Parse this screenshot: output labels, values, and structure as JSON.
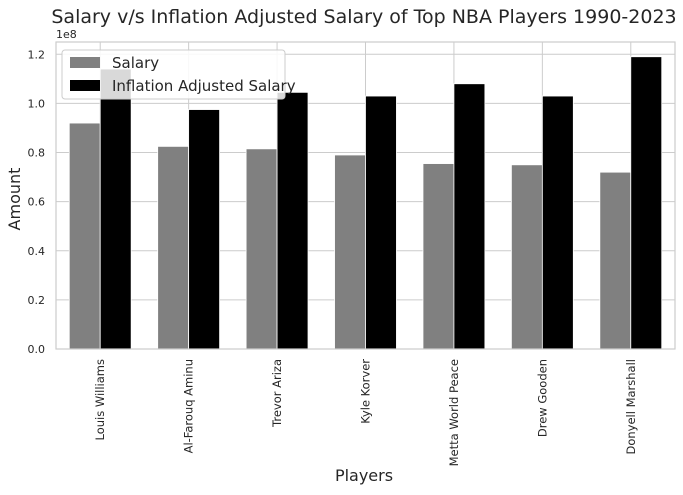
{
  "chart_data": {
    "type": "bar",
    "title": "Salary v/s Inflation Adjusted Salary of Top NBA Players 1990-2023",
    "xlabel": "Players",
    "ylabel": "Amount",
    "y_scale_multiplier": "1e8",
    "ylim": [
      0,
      125000000
    ],
    "yticks": [
      0,
      20000000,
      40000000,
      60000000,
      80000000,
      100000000,
      120000000
    ],
    "ytick_labels": [
      "0.0",
      "0.2",
      "0.4",
      "0.6",
      "0.8",
      "1.0",
      "1.2"
    ],
    "grid": true,
    "legend_position": "top-left",
    "categories": [
      "Louis Williams",
      "Al-Farouq Aminu",
      "Trevor Ariza",
      "Kyle Korver",
      "Metta World Peace",
      "Drew Gooden",
      "Donyell Marshall"
    ],
    "series": [
      {
        "name": "Salary",
        "color": "#808080",
        "values": [
          92000000,
          82500000,
          81500000,
          79000000,
          75500000,
          75000000,
          72000000
        ]
      },
      {
        "name": "Inflation Adjusted Salary",
        "color": "#000000",
        "values": [
          114000000,
          97500000,
          104500000,
          103000000,
          108000000,
          103000000,
          119000000
        ]
      }
    ]
  }
}
